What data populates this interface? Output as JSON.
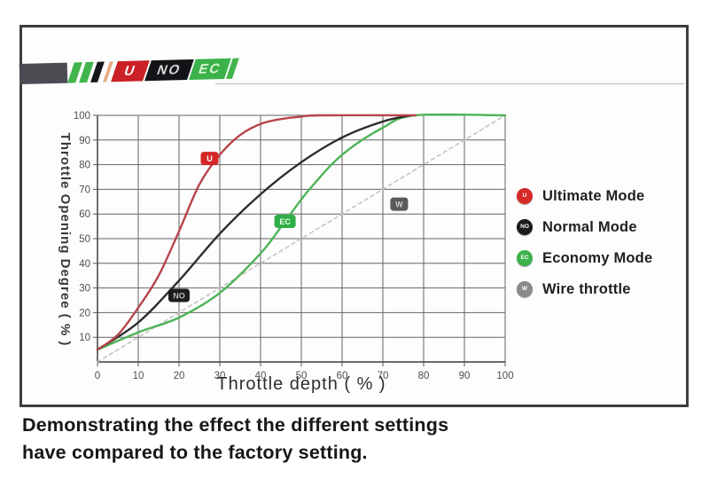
{
  "logo": {
    "segments": [
      {
        "label": "U",
        "bg": "#cb2026",
        "fg": "#ffffff"
      },
      {
        "label": "NO",
        "bg": "#141418",
        "fg": "#d6d6d6"
      },
      {
        "label": "EC",
        "bg": "#3bb24a",
        "fg": "#daf6d3"
      }
    ]
  },
  "chart_data": {
    "type": "line",
    "title": "",
    "xlabel": "Throttle depth ( % )",
    "ylabel": "Throttle Opening Degree ( % )",
    "xlim": [
      0,
      100
    ],
    "ylim": [
      0,
      100
    ],
    "xticks": [
      0,
      10,
      20,
      30,
      40,
      50,
      60,
      70,
      80,
      90,
      100
    ],
    "yticks": [
      10,
      20,
      30,
      40,
      50,
      60,
      70,
      80,
      90,
      100
    ],
    "grid": true,
    "legend_position": "right",
    "series": [
      {
        "name": "Wire throttle",
        "color": "#c4c4c4",
        "dash": "4 4",
        "width": 1.6,
        "points": [
          [
            0,
            0
          ],
          [
            100,
            100
          ]
        ]
      },
      {
        "name": "Economy Mode",
        "color": "#4db457",
        "dash": "",
        "width": 2.4,
        "points": [
          [
            0,
            5
          ],
          [
            10,
            12
          ],
          [
            20,
            18
          ],
          [
            30,
            28
          ],
          [
            40,
            44
          ],
          [
            46,
            57
          ],
          [
            52,
            70
          ],
          [
            60,
            84
          ],
          [
            70,
            95
          ],
          [
            78,
            100
          ],
          [
            100,
            100
          ]
        ]
      },
      {
        "name": "Normal Mode",
        "color": "#2d2d2d",
        "dash": "",
        "width": 2.4,
        "points": [
          [
            0,
            5
          ],
          [
            10,
            16
          ],
          [
            20,
            33
          ],
          [
            30,
            52
          ],
          [
            40,
            68
          ],
          [
            50,
            81
          ],
          [
            60,
            91
          ],
          [
            70,
            97.5
          ],
          [
            77,
            100
          ]
        ]
      },
      {
        "name": "Ultimate Mode",
        "color": "#b8444b",
        "dash": "",
        "width": 2.4,
        "points": [
          [
            0,
            5
          ],
          [
            5,
            11
          ],
          [
            10,
            22
          ],
          [
            15,
            35
          ],
          [
            20,
            53
          ],
          [
            25,
            72
          ],
          [
            30,
            84
          ],
          [
            35,
            92
          ],
          [
            40,
            96.5
          ],
          [
            45,
            98.5
          ],
          [
            50,
            99.5
          ],
          [
            55,
            100
          ],
          [
            78,
            100
          ]
        ]
      }
    ],
    "badges": [
      {
        "letter": "U",
        "x": 27.5,
        "y": 82.5,
        "bg": "#d32728",
        "fg": "#ffffff"
      },
      {
        "letter": "NO",
        "x": 20,
        "y": 27,
        "bg": "#1c1c1c",
        "fg": "#bdbdbd"
      },
      {
        "letter": "EC",
        "x": 46,
        "y": 57,
        "bg": "#2fae47",
        "fg": "#e8ffe8"
      },
      {
        "letter": "W",
        "x": 74,
        "y": 64,
        "bg": "#5a5a5a",
        "fg": "#cccccc"
      }
    ]
  },
  "legend": {
    "items": [
      {
        "letter": "U",
        "label": "Ultimate Mode",
        "color": "#d62a28"
      },
      {
        "letter": "NO",
        "label": "Normal Mode",
        "color": "#1b1b1b"
      },
      {
        "letter": "EC",
        "label": "Economy Mode",
        "color": "#3cb24b"
      },
      {
        "letter": "W",
        "label": "Wire throttle",
        "color": "#8a8a8a"
      }
    ]
  },
  "caption": {
    "line1": "Demonstrating the effect the different settings",
    "line2": "have compared to the factory setting."
  }
}
